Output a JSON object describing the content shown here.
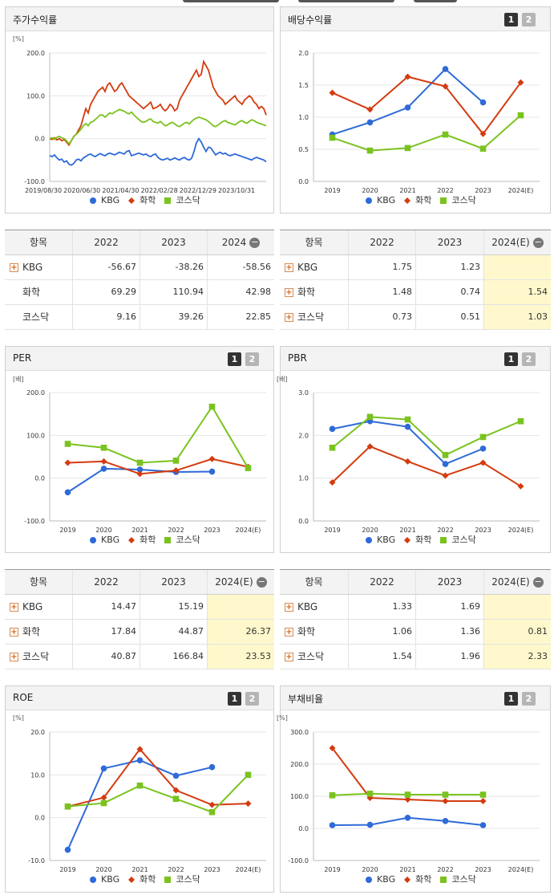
{
  "colors": {
    "KBG": "#2e6ad8",
    "화학": "#d43b0f",
    "코스닥": "#7ac31f"
  },
  "panels": [
    {
      "id": "stock-return",
      "title": "주가수익률",
      "pager": [],
      "chart_data": {
        "type": "line",
        "unit": "[%]",
        "ylim": [
          -100,
          200
        ],
        "yticks": [
          "200.0",
          "100.0",
          "0.0",
          "-100.0"
        ],
        "xticklabels": [
          "2019/08/30",
          "2020/06/30",
          "2021/04/30",
          "2022/02/28",
          "2022/12/29",
          "2023/10/31"
        ],
        "x": [
          0,
          1,
          2,
          3,
          4,
          5,
          6,
          7,
          8,
          9,
          10,
          11,
          12,
          13,
          14,
          15,
          16,
          17,
          18,
          19,
          20,
          21,
          22,
          23,
          24,
          25,
          26,
          27,
          28,
          29,
          30,
          31,
          32,
          33,
          34,
          35,
          36,
          37,
          38,
          39,
          40,
          41,
          42,
          43,
          44,
          45,
          46,
          47,
          48,
          49,
          50,
          51,
          52,
          53,
          54,
          55,
          56,
          57,
          58,
          59,
          60,
          61,
          62,
          63,
          64,
          65,
          66,
          67,
          68,
          69,
          70,
          71,
          72,
          73,
          74,
          75,
          76,
          77,
          78,
          79,
          80,
          81,
          82,
          83,
          84,
          85,
          86,
          87,
          88,
          89,
          90
        ],
        "series": [
          {
            "name": "KBG",
            "values": [
              -40,
              -42,
              -38,
              -45,
              -50,
              -48,
              -55,
              -52,
              -60,
              -62,
              -58,
              -50,
              -48,
              -52,
              -45,
              -42,
              -38,
              -36,
              -40,
              -42,
              -38,
              -35,
              -38,
              -40,
              -36,
              -34,
              -36,
              -38,
              -35,
              -32,
              -34,
              -36,
              -30,
              -28,
              -40,
              -38,
              -36,
              -34,
              -36,
              -38,
              -36,
              -40,
              -42,
              -38,
              -36,
              -44,
              -48,
              -50,
              -48,
              -46,
              -50,
              -48,
              -45,
              -48,
              -50,
              -46,
              -44,
              -48,
              -50,
              -46,
              -30,
              -10,
              0,
              -8,
              -20,
              -30,
              -20,
              -22,
              -30,
              -38,
              -34,
              -32,
              -36,
              -34,
              -38,
              -40,
              -38,
              -36,
              -38,
              -40,
              -42,
              -44,
              -46,
              -48,
              -50,
              -46,
              -44,
              -46,
              -48,
              -50,
              -54
            ]
          },
          {
            "name": "화학",
            "values": [
              0,
              -2,
              2,
              -3,
              0,
              -5,
              -2,
              -8,
              -15,
              -5,
              5,
              10,
              20,
              30,
              50,
              70,
              60,
              80,
              90,
              100,
              110,
              115,
              120,
              110,
              125,
              130,
              120,
              110,
              115,
              125,
              130,
              120,
              110,
              100,
              95,
              90,
              85,
              80,
              75,
              70,
              75,
              80,
              85,
              70,
              72,
              75,
              80,
              70,
              65,
              70,
              80,
              75,
              65,
              70,
              90,
              100,
              110,
              120,
              130,
              140,
              150,
              160,
              145,
              150,
              180,
              170,
              160,
              140,
              120,
              110,
              100,
              95,
              90,
              80,
              85,
              90,
              95,
              100,
              90,
              85,
              80,
              90,
              95,
              100,
              95,
              85,
              80,
              70,
              75,
              70,
              55
            ]
          },
          {
            "name": "코스닥",
            "values": [
              0,
              2,
              -2,
              3,
              5,
              2,
              0,
              -5,
              -12,
              -5,
              5,
              10,
              15,
              22,
              30,
              35,
              30,
              38,
              40,
              45,
              50,
              55,
              55,
              50,
              55,
              60,
              58,
              62,
              65,
              68,
              66,
              64,
              60,
              58,
              62,
              55,
              50,
              45,
              40,
              38,
              40,
              44,
              46,
              40,
              38,
              36,
              40,
              35,
              30,
              32,
              36,
              38,
              34,
              30,
              28,
              32,
              36,
              38,
              34,
              40,
              45,
              48,
              50,
              48,
              46,
              44,
              40,
              35,
              30,
              28,
              32,
              36,
              40,
              42,
              38,
              36,
              34,
              32,
              36,
              40,
              42,
              38,
              36,
              40,
              44,
              42,
              38,
              36,
              34,
              32,
              30
            ]
          }
        ]
      }
    },
    {
      "id": "dividend-yield",
      "title": "배당수익률",
      "pager": [
        "1",
        "2"
      ],
      "chart_data": {
        "type": "line",
        "unit": "",
        "ylim": [
          0,
          2
        ],
        "yticks": [
          "2.0",
          "1.5",
          "1.0",
          "0.5",
          "0.0"
        ],
        "categories": [
          "2019",
          "2020",
          "2021",
          "2022",
          "2023",
          "2024(E)"
        ],
        "series": [
          {
            "name": "KBG",
            "values": [
              0.73,
              0.92,
              1.15,
              1.75,
              1.23,
              null
            ]
          },
          {
            "name": "화학",
            "values": [
              1.38,
              1.12,
              1.63,
              1.48,
              0.74,
              1.54
            ]
          },
          {
            "name": "코스닥",
            "values": [
              0.68,
              0.48,
              0.52,
              0.73,
              0.51,
              1.03
            ]
          }
        ]
      }
    },
    {
      "id": "per",
      "title": "PER",
      "pager": [
        "1",
        "2"
      ],
      "chart_data": {
        "type": "line",
        "unit": "[배]",
        "ylim": [
          -100,
          200
        ],
        "yticks": [
          "200.0",
          "100.0",
          "0.0",
          "-100.0"
        ],
        "categories": [
          "2019",
          "2020",
          "2021",
          "2022",
          "2023",
          "2024(E)"
        ],
        "series": [
          {
            "name": "KBG",
            "values": [
              -33,
              22,
              20,
              14.47,
              15.19,
              null
            ]
          },
          {
            "name": "화학",
            "values": [
              36,
              39,
              10,
              17.84,
              44.87,
              26.37
            ]
          },
          {
            "name": "코스닥",
            "values": [
              80,
              71,
              36,
              40.87,
              166.84,
              23.53
            ]
          }
        ]
      }
    },
    {
      "id": "pbr",
      "title": "PBR",
      "pager": [
        "1",
        "2"
      ],
      "chart_data": {
        "type": "line",
        "unit": "[배]",
        "ylim": [
          0,
          3
        ],
        "yticks": [
          "3.0",
          "2.0",
          "1.0",
          "0.0"
        ],
        "categories": [
          "2019",
          "2020",
          "2021",
          "2022",
          "2023",
          "2024(E)"
        ],
        "series": [
          {
            "name": "KBG",
            "values": [
              2.15,
              2.33,
              2.2,
              1.33,
              1.69,
              null
            ]
          },
          {
            "name": "화학",
            "values": [
              0.9,
              1.74,
              1.39,
              1.06,
              1.36,
              0.81
            ]
          },
          {
            "name": "코스닥",
            "values": [
              1.71,
              2.43,
              2.37,
              1.54,
              1.96,
              2.33
            ]
          }
        ]
      }
    },
    {
      "id": "roe",
      "title": "ROE",
      "pager": [
        "1",
        "2"
      ],
      "chart_data": {
        "type": "line",
        "unit": "[%]",
        "ylim": [
          -10,
          20
        ],
        "yticks": [
          "20.0",
          "10.0",
          "0.0",
          "-10.0"
        ],
        "categories": [
          "2019",
          "2020",
          "2021",
          "2022",
          "2023",
          "2024(E)"
        ],
        "series": [
          {
            "name": "KBG",
            "values": [
              -7.5,
              11.5,
              13.4,
              9.8,
              11.8,
              null
            ]
          },
          {
            "name": "화학",
            "values": [
              2.6,
              4.7,
              16.0,
              6.4,
              3.0,
              3.3
            ]
          },
          {
            "name": "코스닥",
            "values": [
              2.6,
              3.4,
              7.5,
              4.4,
              1.3,
              10.0
            ]
          }
        ]
      }
    },
    {
      "id": "debt-ratio",
      "title": "부채비율",
      "pager": [
        "1",
        "2"
      ],
      "chart_data": {
        "type": "line",
        "unit": "[%]",
        "ylim": [
          -100,
          300
        ],
        "yticks": [
          "300.0",
          "200.0",
          "100.0",
          "0.0",
          "-100.0"
        ],
        "categories": [
          "2019",
          "2020",
          "2021",
          "2022",
          "2023",
          "2024(E)"
        ],
        "series": [
          {
            "name": "KBG",
            "values": [
              10,
              11,
              33,
              23,
              10,
              null
            ]
          },
          {
            "name": "화학",
            "values": [
              250,
              95,
              90,
              85,
              85,
              null
            ]
          },
          {
            "name": "코스닥",
            "values": [
              103,
              108,
              105,
              105,
              105,
              null
            ]
          }
        ]
      }
    }
  ],
  "legend": [
    "KBG",
    "화학",
    "코스닥"
  ],
  "tables": [
    {
      "id": "stock-return-table",
      "header": [
        "항목",
        "2022",
        "2023",
        "2024"
      ],
      "rows": [
        {
          "label": "KBG",
          "plus": true,
          "values": [
            "-56.67",
            "-38.26",
            "-58.56"
          ]
        },
        {
          "label": "화학",
          "plus": false,
          "values": [
            "69.29",
            "110.94",
            "42.98"
          ]
        },
        {
          "label": "코스닥",
          "plus": false,
          "values": [
            "9.16",
            "39.26",
            "22.85"
          ]
        }
      ]
    },
    {
      "id": "dividend-table",
      "header": [
        "항목",
        "2022",
        "2023",
        "2024(E)"
      ],
      "rows": [
        {
          "label": "KBG",
          "plus": true,
          "values": [
            "1.75",
            "1.23",
            ""
          ]
        },
        {
          "label": "화학",
          "plus": true,
          "values": [
            "1.48",
            "0.74",
            "1.54"
          ]
        },
        {
          "label": "코스닥",
          "plus": true,
          "values": [
            "0.73",
            "0.51",
            "1.03"
          ]
        }
      ]
    },
    {
      "id": "per-table",
      "header": [
        "항목",
        "2022",
        "2023",
        "2024(E)"
      ],
      "rows": [
        {
          "label": "KBG",
          "plus": true,
          "values": [
            "14.47",
            "15.19",
            ""
          ]
        },
        {
          "label": "화학",
          "plus": true,
          "values": [
            "17.84",
            "44.87",
            "26.37"
          ]
        },
        {
          "label": "코스닥",
          "plus": true,
          "values": [
            "40.87",
            "166.84",
            "23.53"
          ]
        }
      ]
    },
    {
      "id": "pbr-table",
      "header": [
        "항목",
        "2022",
        "2023",
        "2024(E)"
      ],
      "rows": [
        {
          "label": "KBG",
          "plus": true,
          "values": [
            "1.33",
            "1.69",
            ""
          ]
        },
        {
          "label": "화학",
          "plus": true,
          "values": [
            "1.06",
            "1.36",
            "0.81"
          ]
        },
        {
          "label": "코스닥",
          "plus": true,
          "values": [
            "1.54",
            "1.96",
            "2.33"
          ]
        }
      ]
    }
  ]
}
